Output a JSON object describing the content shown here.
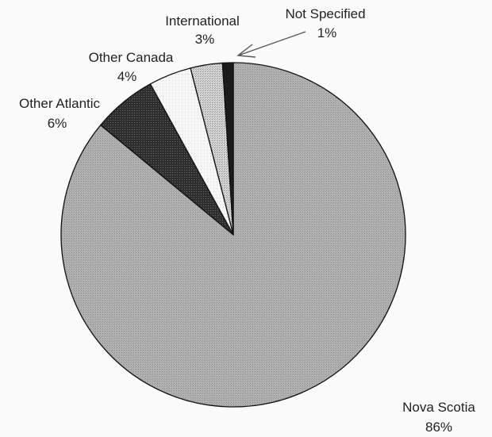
{
  "chart_data": {
    "type": "pie",
    "title": "",
    "start_angle_deg": 0,
    "direction": "clockwise",
    "slices": [
      {
        "label": "Nova Scotia",
        "value_label": "86%",
        "value": 86,
        "color": "#a9a9a9",
        "pattern": "dots-fine"
      },
      {
        "label": "Other Atlantic",
        "value_label": "6%",
        "value": 6,
        "color": "#3a3a3a",
        "pattern": "dark-stipple"
      },
      {
        "label": "Other Canada",
        "value_label": "4%",
        "value": 4,
        "color": "#f4f4f4",
        "pattern": "light-stipple"
      },
      {
        "label": "International",
        "value_label": "3%",
        "value": 3,
        "color": "#c8c8c8",
        "pattern": "dots-coarse"
      },
      {
        "label": "Not Specified",
        "value_label": "1%",
        "value": 1,
        "color": "#1c1c1c",
        "pattern": "solid-dark"
      }
    ],
    "legend": "none",
    "labels_outside": true
  }
}
